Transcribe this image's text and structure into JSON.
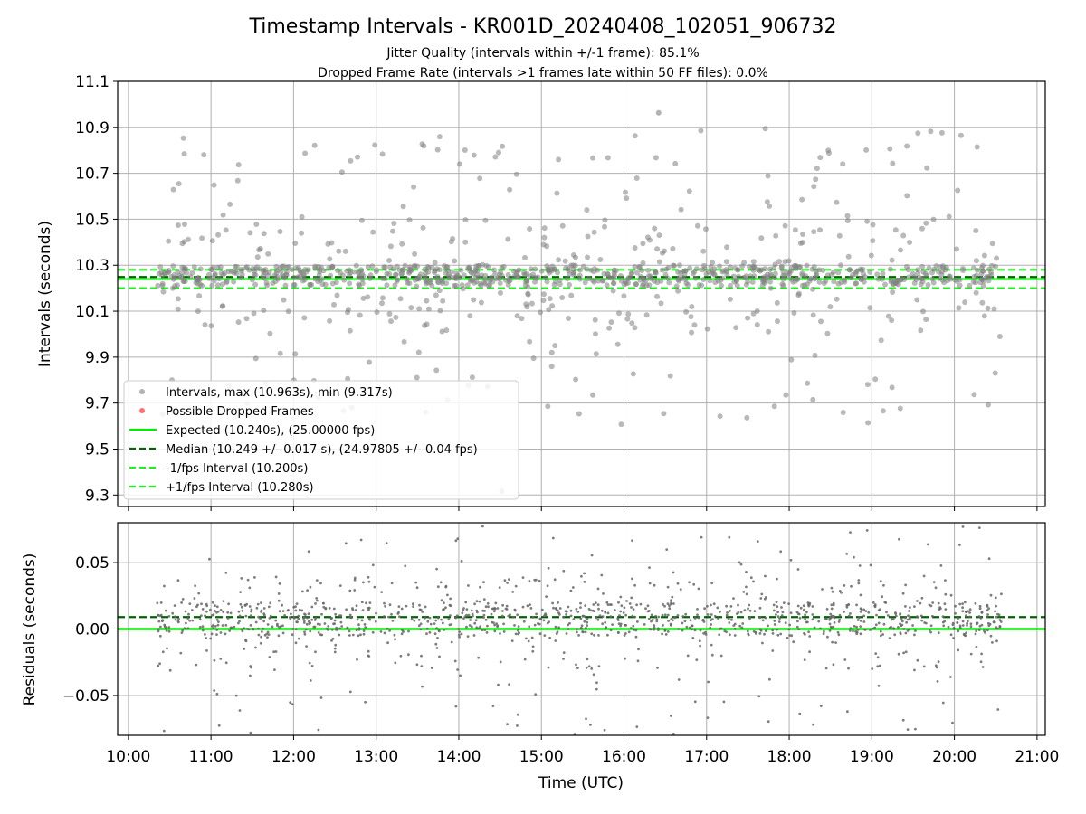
{
  "title": "Timestamp Intervals - KR001D_20240408_102051_906732",
  "subtitle_1": "Jitter Quality (intervals within +/-1 frame): 85.1%",
  "subtitle_2": "Dropped Frame Rate (intervals >1 frames late within 50 FF files): 0.0%",
  "colors": {
    "points": "#808080",
    "dropped": "#ff4040",
    "expected": "#00ee00",
    "median": "#006400",
    "interval": "#22ee22",
    "grid": "#b0b0b0"
  },
  "chart_data": [
    {
      "type": "scatter",
      "panel": "top",
      "ylabel": "Intervals (seconds)",
      "xlabel": "",
      "ylim": [
        9.25,
        11.1
      ],
      "xlim_hours": [
        9.87,
        21.1
      ],
      "yticks": [
        "9.3",
        "9.5",
        "9.7",
        "9.9",
        "10.1",
        "10.3",
        "10.5",
        "10.7",
        "10.9",
        "11.1"
      ],
      "grid": true,
      "legend_position": "lower-left",
      "legend": [
        "Intervals, max (10.963s), min (9.317s)",
        "Possible Dropped Frames",
        "Expected (10.240s), (25.00000 fps)",
        "Median (10.249 +/- 0.017 s), (24.97805 +/- 0.04 fps)",
        "-1/fps Interval (10.200s)",
        "+1/fps Interval (10.280s)"
      ],
      "lines": {
        "expected": 10.24,
        "median": 10.249,
        "minus_one_fps": 10.2,
        "plus_one_fps": 10.28
      },
      "series": {
        "x_range_hours": [
          10.35,
          20.57
        ],
        "max": 10.963,
        "min": 9.317,
        "core_band": [
          10.2,
          10.3
        ],
        "estimated_point_count": 1100
      }
    },
    {
      "type": "scatter",
      "panel": "bottom",
      "ylabel": "Residuals (seconds)",
      "xlabel": "Time (UTC)",
      "ylim": [
        -0.08,
        0.08
      ],
      "yticks": [
        "−0.05",
        "0.00",
        "0.05"
      ],
      "ytick_values": [
        -0.05,
        0,
        0.05
      ],
      "xticks": [
        "10:00",
        "11:00",
        "12:00",
        "13:00",
        "14:00",
        "15:00",
        "16:00",
        "17:00",
        "18:00",
        "19:00",
        "20:00",
        "21:00"
      ],
      "xtick_hours": [
        10,
        11,
        12,
        13,
        14,
        15,
        16,
        17,
        18,
        19,
        20,
        21
      ],
      "grid": true,
      "lines": {
        "zero": 0.0,
        "median_offset": 0.009
      },
      "series": {
        "x_range_hours": [
          10.35,
          20.57
        ],
        "core_band": [
          -0.005,
          0.02
        ]
      }
    }
  ]
}
